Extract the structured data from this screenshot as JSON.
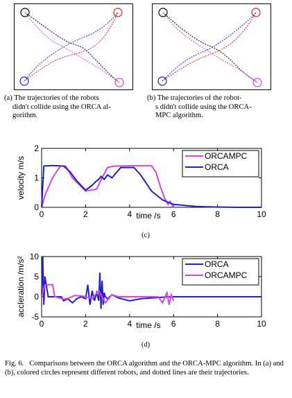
{
  "colors": {
    "blue": "#1f1fd6",
    "red": "#e02020",
    "magenta": "#e040e0",
    "black": "#000000"
  },
  "panel_a": {
    "caption": "(a) The trajectories of the robots didn't collide using the ORCA algorithm.",
    "caption_lines": [
      "(a) The trajectories of the robots",
      "didn't collide using the ORCA al-",
      "gorithm."
    ]
  },
  "panel_b": {
    "caption": "(b) The trajectories of the robots didn't collide using the ORCA-MPC algorithm.",
    "caption_lines": [
      "(b) The trajectories of the robot-",
      "s didn't collide using the ORCA-",
      "MPC algorithm."
    ]
  },
  "chart_data": [
    {
      "id": "c",
      "type": "line",
      "xlabel": "time /s",
      "ylabel": "velocity m/s",
      "xlim": [
        0,
        10
      ],
      "ylim": [
        0,
        2
      ],
      "xticks": [
        0,
        2,
        4,
        6,
        8,
        10
      ],
      "yticks": [
        0,
        1,
        2
      ],
      "legend_position": "top-right",
      "series": [
        {
          "name": "ORCAMPC",
          "color": "#e040e0",
          "x": [
            0,
            0.15,
            0.5,
            0.85,
            1.1,
            1.4,
            2.0,
            2.5,
            2.75,
            3.0,
            3.3,
            3.55,
            4.1,
            4.65,
            5.0,
            5.2,
            5.4,
            5.6,
            5.75,
            5.85,
            5.95,
            6.05
          ],
          "y": [
            0,
            0.4,
            1.0,
            1.4,
            1.4,
            1.0,
            0.55,
            0.62,
            1.0,
            1.35,
            1.4,
            1.4,
            1.41,
            1.41,
            1.41,
            1.2,
            0.7,
            0.3,
            0.1,
            0.2,
            0.05,
            0
          ]
        },
        {
          "name": "ORCA",
          "color": "#1f1fd6",
          "x": [
            0,
            0.1,
            0.5,
            1.0,
            1.3,
            1.6,
            2.0,
            2.3,
            2.5,
            2.6,
            2.7,
            2.85,
            3.0,
            3.2,
            3.6,
            4.2,
            4.5,
            5.0,
            5.5,
            6.0,
            7.0,
            8.0,
            9.0,
            10.0
          ],
          "y": [
            0,
            1.4,
            1.42,
            1.4,
            1.2,
            0.9,
            0.58,
            0.75,
            0.9,
            0.95,
            1.05,
            0.95,
            1.1,
            1.0,
            1.35,
            1.35,
            1.1,
            0.55,
            0.25,
            0.1,
            0.03,
            0.01,
            0,
            0
          ]
        }
      ],
      "panel_label": "(c)"
    },
    {
      "id": "d",
      "type": "line",
      "xlabel": "time /s",
      "ylabel": "accleration /m/s²",
      "xlim": [
        0,
        10
      ],
      "ylim": [
        -5,
        10
      ],
      "xticks": [
        0,
        2,
        4,
        6,
        8,
        10
      ],
      "yticks": [
        -5,
        0,
        5,
        10
      ],
      "legend_position": "top-right",
      "series": [
        {
          "name": "ORCA",
          "color": "#1f1fd6",
          "x": [
            0,
            0.05,
            0.1,
            0.15,
            0.3,
            0.9,
            1.0,
            1.2,
            1.4,
            1.6,
            1.8,
            2.0,
            2.1,
            2.2,
            2.3,
            2.4,
            2.5,
            2.6,
            2.65,
            2.7,
            2.75,
            2.8,
            2.85,
            2.9,
            3.0,
            3.2,
            3.5,
            4.0,
            4.5,
            5.0,
            5.5,
            6.0,
            7.0,
            8.0,
            9.0,
            10.0
          ],
          "y": [
            0,
            10,
            -2,
            5,
            0,
            0,
            -1,
            -0.5,
            -1.5,
            -0.5,
            0,
            -0.5,
            3,
            -2,
            1.5,
            -1,
            1,
            -1,
            6,
            -3,
            4,
            -2,
            1,
            0,
            -0.5,
            0.5,
            -0.3,
            -1,
            -0.5,
            -0.3,
            -0.1,
            0,
            0,
            0,
            0,
            0
          ]
        },
        {
          "name": "ORCAMPC",
          "color": "#e040e0",
          "x": [
            0,
            0.15,
            0.5,
            0.6,
            0.8,
            1.0,
            1.2,
            1.5,
            1.8,
            2.0,
            2.3,
            2.6,
            2.9,
            3.2,
            3.5,
            4.0,
            4.5,
            5.0,
            5.3,
            5.5,
            5.7,
            5.8,
            5.9,
            6.0
          ],
          "y": [
            0,
            3,
            3,
            0,
            -0.3,
            -0.6,
            -0.4,
            0.3,
            0.2,
            0,
            -0.5,
            1.5,
            -1.5,
            0.5,
            0,
            0,
            0,
            0,
            0,
            -1.5,
            1,
            -2,
            0.5,
            -1
          ]
        }
      ],
      "panel_label": "(d)"
    }
  ],
  "figure_caption": {
    "label": "Fig. 6.",
    "text": "Comparisons between the ORCA algorithm and the ORCA-MPC algorithm. In (a) and (b), colored circles represent different robots, and dotted lines are their trajectories."
  }
}
